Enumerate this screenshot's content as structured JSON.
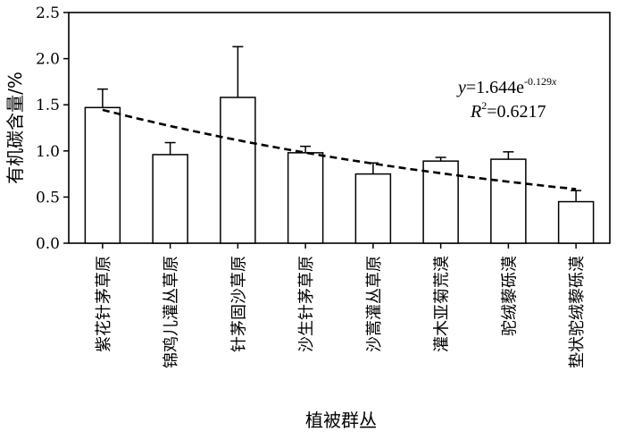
{
  "chart_data": {
    "type": "bar",
    "title": "",
    "xlabel": "植被群丛",
    "ylabel": "有机碳含量/%",
    "ylim": [
      0,
      2.5
    ],
    "yticks": [
      "0.0",
      "0.5",
      "1.0",
      "1.5",
      "2.0",
      "2.5"
    ],
    "grid": false,
    "legend": "none",
    "categories": [
      "紫花针茅草原",
      "锦鸡儿灌丛草原",
      "针茅固沙草原",
      "沙生针茅草原",
      "沙蒿灌丛草原",
      "灌木亚菊荒漠",
      "驼绒藜砾漠",
      "垫状驼绒藜砾漠"
    ],
    "values": [
      1.47,
      0.96,
      1.58,
      0.98,
      0.75,
      0.89,
      0.91,
      0.45
    ],
    "errors": [
      0.2,
      0.13,
      0.55,
      0.07,
      0.12,
      0.04,
      0.08,
      0.12
    ],
    "trendline": {
      "style": "dashed",
      "equation": {
        "y": "y",
        "eq": "=1.644e",
        "exp": "-0.129",
        "x": "x"
      },
      "r2": {
        "R": "R",
        "sup": "2",
        "eq": "=0.6217"
      }
    },
    "colors": {
      "bar_fill": "#ffffff",
      "stroke": "#000000"
    }
  }
}
